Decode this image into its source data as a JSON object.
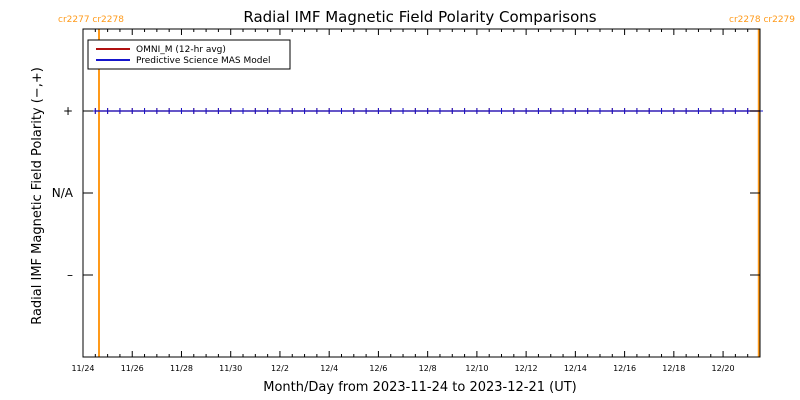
{
  "colors": {
    "omni": "#b01010",
    "model": "#1515cc",
    "carrington": "#ff9a1a",
    "axis": "#000000",
    "background": "#ffffff"
  },
  "chart_data": {
    "type": "line",
    "title": "Radial IMF Magnetic Field Polarity Comparisons",
    "xlabel": "Month/Day from 2023-11-24 to 2023-12-21 (UT)",
    "ylabel": "Radial IMF Magnetic Field Polarity (−,+)",
    "xlim": [
      0,
      27.5
    ],
    "ylim": [
      -2,
      2
    ],
    "x_tick_values": [
      0,
      2,
      4,
      6,
      8,
      10,
      12,
      14,
      16,
      18,
      20,
      22,
      24,
      26
    ],
    "x_tick_labels": [
      "11/24",
      "11/26",
      "11/28",
      "11/30",
      "12/2",
      "12/4",
      "12/6",
      "12/8",
      "12/10",
      "12/12",
      "12/14",
      "12/16",
      "12/18",
      "12/20"
    ],
    "y_tick_values": [
      1,
      0,
      -1
    ],
    "y_tick_labels": [
      "+",
      "N/A",
      "–"
    ],
    "carrington_markers": [
      {
        "x": 0.65,
        "labels": [
          "cr2277",
          "cr2278"
        ],
        "side": "left"
      },
      {
        "x": 27.45,
        "labels": [
          "cr2278",
          "cr2279"
        ],
        "side": "right"
      }
    ],
    "legend": {
      "position": "top-left",
      "entries": [
        "OMNI_M (12-hr avg)",
        "Predictive Science MAS Model"
      ]
    },
    "series": [
      {
        "name": "OMNI_M (12-hr avg)",
        "color": "#b01010",
        "marker": "plus",
        "x": [
          0.5,
          1.0,
          1.5,
          2.0,
          2.5,
          3.0,
          3.5,
          4.0,
          4.5,
          5.0,
          5.5,
          6.0,
          6.5,
          7.0,
          7.5,
          8.0,
          8.5,
          9.0,
          9.5,
          10.0,
          10.5,
          11.0,
          11.5,
          12.0,
          12.5,
          13.0,
          13.5,
          14.0,
          14.5,
          15.0,
          15.5,
          16.0,
          16.5,
          17.0,
          17.5,
          18.0,
          18.5,
          19.0,
          19.5,
          20.0,
          20.5,
          21.0,
          21.5,
          22.0,
          22.5,
          23.0,
          23.5,
          24.0,
          24.5,
          25.0,
          25.5,
          26.0,
          26.5,
          27.0,
          27.5
        ],
        "y": [
          1,
          1,
          1,
          1,
          1,
          1,
          1,
          1,
          1,
          1,
          1,
          1,
          1,
          1,
          1,
          1,
          1,
          1,
          1,
          1,
          1,
          1,
          1,
          1,
          1,
          1,
          1,
          1,
          1,
          1,
          1,
          1,
          1,
          1,
          1,
          1,
          1,
          1,
          1,
          1,
          1,
          1,
          1,
          1,
          1,
          1,
          1,
          1,
          1,
          1,
          1,
          1,
          1,
          1,
          1
        ]
      },
      {
        "name": "Predictive Science MAS Model",
        "color": "#1515cc",
        "marker": "plus",
        "x": [
          0.5,
          1.0,
          1.5,
          2.0,
          2.5,
          3.0,
          3.5,
          4.0,
          4.5,
          5.0,
          5.5,
          6.0,
          6.5,
          7.0,
          7.5,
          8.0,
          8.5,
          9.0,
          9.5,
          10.0,
          10.5,
          11.0,
          11.5,
          12.0,
          12.5,
          13.0,
          13.5,
          14.0,
          14.5,
          15.0,
          15.5,
          16.0,
          16.5,
          17.0,
          17.5,
          18.0,
          18.5,
          19.0,
          19.5,
          20.0,
          20.5,
          21.0,
          21.5,
          22.0,
          22.5,
          23.0,
          23.5,
          24.0,
          24.5,
          25.0,
          25.5,
          26.0,
          26.5,
          27.0,
          27.5
        ],
        "y": [
          1,
          1,
          1,
          1,
          1,
          1,
          1,
          1,
          1,
          1,
          1,
          1,
          1,
          1,
          1,
          1,
          1,
          1,
          1,
          1,
          1,
          1,
          1,
          1,
          1,
          1,
          1,
          1,
          1,
          1,
          1,
          1,
          1,
          1,
          1,
          1,
          1,
          1,
          1,
          1,
          1,
          1,
          1,
          1,
          1,
          1,
          1,
          1,
          1,
          1,
          1,
          1,
          1,
          1,
          1
        ]
      }
    ]
  }
}
